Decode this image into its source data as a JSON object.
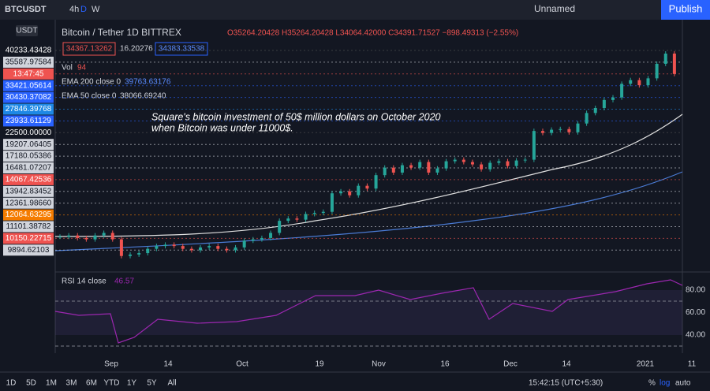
{
  "toolbar": {
    "symbol": "BTCUSDT",
    "intervals": [
      "4h",
      "D",
      "W"
    ],
    "layout_name": "Unnamed",
    "publish": "Publish"
  },
  "legend": {
    "title": "Bitcoin / Tether  1D  BITTREX",
    "ohlc": "O35264.20428 H35264.20428 L34064.42000 C34391.71527 −898.49313 (−2.55%)",
    "bid": "34367.13262",
    "spread": "16.20276",
    "ask": "34383.33538",
    "volume": "Vol",
    "volume_value": "94",
    "ema200": "EMA 200 close 0",
    "ema200_value": "39763.63176",
    "ema50": "EMA 50 close 0",
    "ema50_value": "38066.69240"
  },
  "scale_badge": "USDT",
  "annotation": [
    "Square's bitcoin investment of 50$ million dollars on October 2020",
    "when Bitcoin was under 11000$."
  ],
  "price_labels": [
    {
      "text": "40233.43428",
      "color": "#131722"
    },
    {
      "text": "35587.97584",
      "color": "#d1d4dc"
    },
    {
      "text": "13:47:45",
      "color": "#ef5350"
    },
    {
      "text": "33421.05614",
      "color": "#2962ff"
    },
    {
      "text": "30430.37082",
      "color": "#2962ff"
    },
    {
      "text": "27846.39768",
      "color": "#1e88e5"
    },
    {
      "text": "23933.61129",
      "color": "#2962ff"
    },
    {
      "text": "22500.00000",
      "color": "#131722"
    },
    {
      "text": "19207.06405",
      "color": "#d1d4dc"
    },
    {
      "text": "17180.05386",
      "color": "#d1d4dc"
    },
    {
      "text": "16481.07207",
      "color": "#d1d4dc"
    },
    {
      "text": "14067.42536",
      "color": "#ef5350"
    },
    {
      "text": "13942.83452",
      "color": "#d1d4dc"
    },
    {
      "text": "12361.98660",
      "color": "#d1d4dc"
    },
    {
      "text": "12064.63295",
      "color": "#f57c00"
    },
    {
      "text": "11101.38782",
      "color": "#d1d4dc"
    },
    {
      "text": "10150.22715",
      "color": "#ef5350"
    },
    {
      "text": "9894.62103",
      "color": "#d1d4dc"
    }
  ],
  "chart": {
    "closes": [
      11600,
      11700,
      11500,
      11400,
      11700,
      11900,
      11400,
      10200,
      10300,
      10400,
      10700,
      10900,
      11000,
      10900,
      10700,
      10600,
      10800,
      10900,
      10700,
      10600,
      10800,
      11300,
      11400,
      11500,
      11900,
      12900,
      13100,
      13000,
      13500,
      13600,
      13700,
      15500,
      15700,
      15300,
      16300,
      16000,
      17500,
      18400,
      17800,
      18700,
      18400,
      19100,
      17800,
      18300,
      19200,
      19400,
      19100,
      18800,
      18200,
      19000,
      19200,
      18600,
      19300,
      19400,
      23500,
      23200,
      23700,
      23800,
      23300,
      24700,
      26500,
      27400,
      28900,
      29400,
      32200,
      33000,
      31900,
      33400,
      36800,
      39400,
      34391.71527
    ]
  },
  "rsi": {
    "label": "RSI 14 close",
    "value": "46.57",
    "ticks": [
      "80.00",
      "60.00",
      "40.00"
    ]
  },
  "time_axis": [
    "Sep",
    "14",
    "Oct",
    "19",
    "Nov",
    "16",
    "Dec",
    "14",
    "2021",
    "11"
  ],
  "ranges": [
    "1D",
    "5D",
    "1M",
    "3M",
    "6M",
    "YTD",
    "1Y",
    "5Y",
    "All"
  ],
  "clock": "15:42:15 (UTC+5:30)",
  "scale_modes": [
    "%",
    "log",
    "auto"
  ]
}
